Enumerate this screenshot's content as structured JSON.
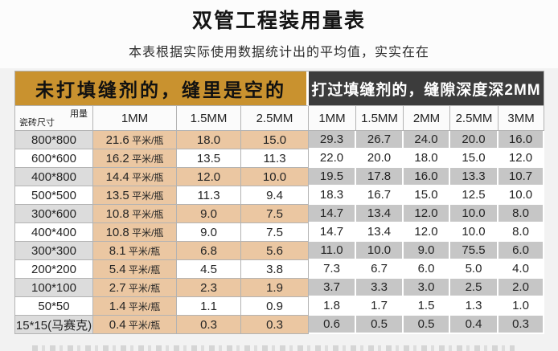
{
  "page": {
    "title": "双管工程装用量表",
    "subtitle": "本表根据实际使用数据统计出的平均值，实实在在"
  },
  "table": {
    "group_headers": [
      {
        "label": "未打填缝剂的，缝里是空的"
      },
      {
        "label": "打过填缝剂的，缝隙深度深2MM"
      }
    ],
    "corner": {
      "top_label": "用量",
      "bottom_label": "瓷砖尺寸"
    },
    "left_columns": [
      "1MM",
      "1.5MM",
      "2.5MM"
    ],
    "right_columns": [
      "1MM",
      "1.5MM",
      "2MM",
      "2.5MM",
      "3MM"
    ],
    "unit": "平米/瓶",
    "rows": [
      {
        "size": "800*800",
        "left": [
          "21.6",
          "18.0",
          "15.0"
        ],
        "right": [
          "29.3",
          "26.7",
          "24.0",
          "20.0",
          "16.0"
        ]
      },
      {
        "size": "600*600",
        "left": [
          "16.2",
          "13.5",
          "11.3"
        ],
        "right": [
          "22.0",
          "20.0",
          "18.0",
          "15.0",
          "12.0"
        ]
      },
      {
        "size": "400*800",
        "left": [
          "14.4",
          "12.0",
          "10.0"
        ],
        "right": [
          "19.5",
          "17.8",
          "16.0",
          "13.3",
          "10.7"
        ]
      },
      {
        "size": "500*500",
        "left": [
          "13.5",
          "11.3",
          "9.4"
        ],
        "right": [
          "18.3",
          "16.7",
          "15.0",
          "12.5",
          "10.0"
        ]
      },
      {
        "size": "300*600",
        "left": [
          "10.8",
          "9.0",
          "7.5"
        ],
        "right": [
          "14.7",
          "13.4",
          "12.0",
          "10.0",
          "8.0"
        ]
      },
      {
        "size": "400*400",
        "left": [
          "10.8",
          "9.0",
          "7.5"
        ],
        "right": [
          "14.7",
          "13.4",
          "12.0",
          "10.0",
          "8.0"
        ]
      },
      {
        "size": "300*300",
        "left": [
          "8.1",
          "6.8",
          "5.6"
        ],
        "right": [
          "11.0",
          "10.0",
          "9.0",
          "75.5",
          "6.0"
        ]
      },
      {
        "size": "200*200",
        "left": [
          "5.4",
          "4.5",
          "3.8"
        ],
        "right": [
          "7.3",
          "6.7",
          "6.0",
          "5.0",
          "4.0"
        ]
      },
      {
        "size": "100*100",
        "left": [
          "2.7",
          "2.3",
          "1.9"
        ],
        "right": [
          "3.7",
          "3.3",
          "3.0",
          "2.5",
          "2.0"
        ]
      },
      {
        "size": "50*50",
        "left": [
          "1.4",
          "1.1",
          "0.9"
        ],
        "right": [
          "1.8",
          "1.7",
          "1.5",
          "1.3",
          "1.0"
        ]
      },
      {
        "size": "15*15(马赛克)",
        "left": [
          "0.4",
          "0.3",
          "0.3"
        ],
        "right": [
          "0.6",
          "0.5",
          "0.5",
          "0.4",
          "0.3"
        ]
      }
    ]
  },
  "colors": {
    "tan": "#c9922f",
    "dark": "#3c3c3c",
    "peach": "#ebc7a2",
    "gray_size": "#dcdcdc",
    "gray_right": "#c6c6c6",
    "page_bg": "#f2f2f2",
    "header_bg": "#fcfcfc"
  }
}
